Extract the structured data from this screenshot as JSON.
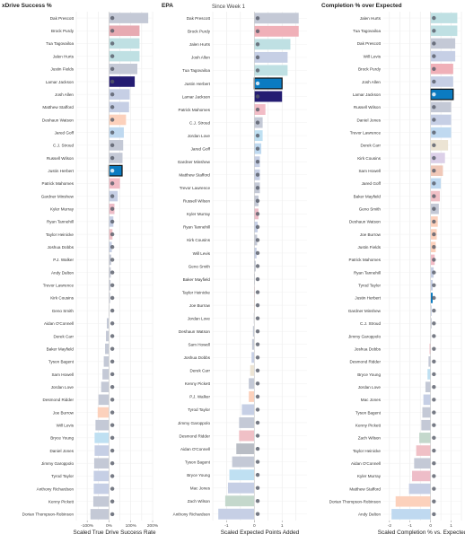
{
  "header": {
    "panel1_title": "xDrive Success %",
    "panel2_title": "EPA",
    "panel2_subtitle": "Since Week 1",
    "panel3_title": "Completion % over Expected"
  },
  "colors": {
    "highlight_fill": "#0b7bc1",
    "highlight_border": "#111111",
    "gridline": "#e6e6e6",
    "zero_line": "#d0d0d0"
  },
  "chart_data": [
    {
      "type": "bar",
      "orientation": "horizontal",
      "title": "xDrive Success %",
      "xlabel": "Scaled True Drive Success Rate",
      "xlim": [
        -150,
        200
      ],
      "xticks": [
        -100,
        0,
        100,
        200
      ],
      "xtick_labels": [
        "-100%",
        "0%",
        "100%",
        "200%"
      ],
      "grid": true,
      "highlighted": "Justin Herbert",
      "players": [
        "Dak Prescott",
        "Brock Purdy",
        "Tua Tagovailoa",
        "Jalen Hurts",
        "Justin Fields",
        "Lamar Jackson",
        "Josh Allen",
        "Matthew Stafford",
        "Deshaun Watson",
        "Jared Goff",
        "C.J. Stroud",
        "Russell Wilson",
        "Justin Herbert",
        "Patrick Mahomes",
        "Gardner Minshew",
        "Kyler Murray",
        "Ryan Tannehill",
        "Taylor Heinicke",
        "Joshua Dobbs",
        "P.J. Walker",
        "Andy Dalton",
        "Trevor Lawrence",
        "Kirk Cousins",
        "Geno Smith",
        "Aidan O'Connell",
        "Derek Carr",
        "Baker Mayfield",
        "Tyson Bagent",
        "Sam Howell",
        "Jordan Love",
        "Desmond Ridder",
        "Joe Burrow",
        "Will Levis",
        "Bryce Young",
        "Daniel Jones",
        "Jimmy Garoppolo",
        "Tyrod Taylor",
        "Anthony Richardson",
        "Kenny Pickett",
        "Dorian Thompson-Robinson"
      ],
      "values": [
        180,
        140,
        140,
        140,
        130,
        118,
        95,
        92,
        78,
        68,
        65,
        62,
        60,
        50,
        40,
        25,
        20,
        16,
        13,
        10,
        8,
        7,
        5,
        2,
        -10,
        -14,
        -18,
        -24,
        -30,
        -36,
        -48,
        -52,
        -62,
        -66,
        -66,
        -68,
        -70,
        -70,
        -72,
        -85
      ],
      "colors": [
        "#c4c9d6",
        "#e7aab2",
        "#bfe0e3",
        "#bfe0e3",
        "#c4c9d6",
        "#241c72",
        "#c6cfe5",
        "#c6cfe5",
        "#fcd1bc",
        "#bfd9f0",
        "#c4c9d6",
        "#c4c9d6",
        "#0b7bc1",
        "#f2bcc6",
        "#c6cfe5",
        "#eebdc8",
        "#c6cfe5",
        "#f0c0c6",
        "#c6cfe5",
        "#c4c9d6",
        "#c4c9d6",
        "#c4c9d6",
        "#c4c9d6",
        "#c4c9d6",
        "#c4c9d6",
        "#c4c9d6",
        "#c4c9d6",
        "#c4c9d6",
        "#c4c9d6",
        "#c4c9d6",
        "#c4c9d6",
        "#fcd1bc",
        "#c4c9d6",
        "#bfe0f2",
        "#c6cfe5",
        "#c4c9d6",
        "#c6cfe5",
        "#c6cfe5",
        "#c4c9d6",
        "#c4c9d6"
      ]
    },
    {
      "type": "bar",
      "orientation": "horizontal",
      "title": "EPA",
      "subtitle": "Since Week 1",
      "xlabel": "Scaled Expected Points Added",
      "xlim": [
        -1.5,
        1.9
      ],
      "xticks": [
        -1,
        0,
        1
      ],
      "xtick_labels": [
        "-1",
        "0",
        "1"
      ],
      "grid": true,
      "highlighted": "Justin Herbert",
      "players": [
        "Dak Prescott",
        "Brock Purdy",
        "Jalen Hurts",
        "Josh Allen",
        "Tua Tagovailoa",
        "Justin Herbert",
        "Lamar Jackson",
        "Patrick Mahomes",
        "C.J. Stroud",
        "Jordan Love",
        "Jared Goff",
        "Gardner Minshew",
        "Matthew Stafford",
        "Trevor Lawrence",
        "Russell Wilson",
        "Kyler Murray",
        "Ryan Tannehill",
        "Kirk Cousins",
        "Will Levis",
        "Geno Smith",
        "Baker Mayfield",
        "Taylor Heinicke",
        "Joe Burrow",
        "Jordan Love",
        "Deshaun Watson",
        "Sam Howell",
        "Joshua Dobbs",
        "Derek Carr",
        "Kenny Pickett",
        "P.J. Walker",
        "Tyrod Taylor",
        "Jimmy Garoppolo",
        "Desmond Ridder",
        "Aidan O'Connell",
        "Tyson Bagent",
        "Bryce Young",
        "Mac Jones",
        "Zach Wilson",
        "Anthony Richardson"
      ],
      "values": [
        1.6,
        1.6,
        1.3,
        1.2,
        1.2,
        1.0,
        1.0,
        0.4,
        0.3,
        0.3,
        0.25,
        0.2,
        0.2,
        0.2,
        0.15,
        0.15,
        0.12,
        0.1,
        0.08,
        0.05,
        0.02,
        0.0,
        0.0,
        -0.02,
        -0.05,
        -0.08,
        -0.1,
        -0.15,
        -0.2,
        -0.2,
        -0.45,
        -0.55,
        -0.55,
        -0.65,
        -0.8,
        -0.9,
        -0.95,
        -1.05,
        -1.3
      ],
      "colors": [
        "#c4c9d6",
        "#f0b0b8",
        "#bfe0e3",
        "#c6cfe5",
        "#bfe0e3",
        "#0b7bc1",
        "#241c72",
        "#f2bcc6",
        "#c4c9d6",
        "#bfe0f2",
        "#bfd9f0",
        "#c6cfe5",
        "#c6cfe5",
        "#c4c9d6",
        "#c4c9d6",
        "#eebdc8",
        "#c6cfe5",
        "#c4c9d6",
        "#c6cfe5",
        "#c4c9d6",
        "#c4c9d6",
        "#f0c0c6",
        "#fcd1bc",
        "#c4c9d6",
        "#c4c9d6",
        "#c4c9d6",
        "#c6cfe5",
        "#ece4d4",
        "#c4c9d6",
        "#fcd1bc",
        "#c6cfe5",
        "#c4c9d6",
        "#f0c0c6",
        "#b9bdc5",
        "#c4c9d6",
        "#bfe0f2",
        "#c6cfe5",
        "#c4d8cc",
        "#c6cfe5"
      ]
    },
    {
      "type": "bar",
      "orientation": "horizontal",
      "title": "Completion % over Expected",
      "xlabel": "Scaled Completion % vs. Expected",
      "xlim": [
        -2.3,
        1.5
      ],
      "xticks": [
        -2,
        -1,
        0,
        1
      ],
      "xtick_labels": [
        "-2",
        "-1",
        "0",
        "1"
      ],
      "grid": true,
      "highlighted": "Lamar Jackson",
      "players": [
        "Jalen Hurts",
        "Tua Tagovailoa",
        "Dak Prescott",
        "Will Levis",
        "Brock Purdy",
        "Josh Allen",
        "Lamar Jackson",
        "Russell Wilson",
        "Daniel Jones",
        "Trevor Lawrence",
        "Derek Carr",
        "Kirk Cousins",
        "Sam Howell",
        "Jared Goff",
        "Baker Mayfield",
        "Geno Smith",
        "Deshaun Watson",
        "Joe Burrow",
        "Justin Fields",
        "Patrick Mahomes",
        "Ryan Tannehill",
        "Tyrod Taylor",
        "Justin Herbert",
        "Gardner Minshew",
        "C.J. Stroud",
        "Jimmy Garoppolo",
        "Joshua Dobbs",
        "Desmond Ridder",
        "Bryce Young",
        "Jordan Love",
        "Mac Jones",
        "Tyson Bagent",
        "Kenny Pickett",
        "Zach Wilson",
        "Taylor Heinicke",
        "Aidan O'Connell",
        "Kyler Murray",
        "Matthew Stafford",
        "Dorian Thompson-Robinson",
        "Andy Dalton"
      ],
      "values": [
        1.3,
        1.3,
        1.2,
        1.2,
        1.1,
        1.1,
        1.1,
        1.0,
        1.0,
        1.0,
        0.85,
        0.7,
        0.6,
        0.5,
        0.45,
        0.4,
        0.35,
        0.3,
        0.25,
        0.2,
        0.15,
        0.1,
        0.1,
        0.05,
        0.05,
        0.0,
        -0.05,
        -0.1,
        -0.15,
        -0.25,
        -0.35,
        -0.4,
        -0.45,
        -0.55,
        -0.7,
        -0.8,
        -0.9,
        -1.05,
        -1.7,
        -1.9
      ],
      "colors": [
        "#bfe0e3",
        "#bfe0e3",
        "#c4c9d6",
        "#c6cfe5",
        "#f0b0b8",
        "#c6cfe5",
        "#241c72",
        "#c4c9d6",
        "#c6cfe5",
        "#bfd9f0",
        "#ece4d4",
        "#dcd0e8",
        "#f0c8b8",
        "#bfd9f0",
        "#f0c0c6",
        "#c4c9d6",
        "#fcd1bc",
        "#fcd1bc",
        "#fcd1bc",
        "#f2bcc6",
        "#c6cfe5",
        "#c6cfe5",
        "#0b7bc1",
        "#c6cfe5",
        "#c4c9d6",
        "#c4c9d6",
        "#f0c0c6",
        "#c4c9d6",
        "#bfe0f2",
        "#c4c9d6",
        "#c6cfe5",
        "#c4c9d6",
        "#c4c9d6",
        "#c4d8cc",
        "#f0c0c6",
        "#c4c9d6",
        "#eebdc8",
        "#c6cfe5",
        "#fcd1bc",
        "#bfd9f0"
      ]
    }
  ]
}
